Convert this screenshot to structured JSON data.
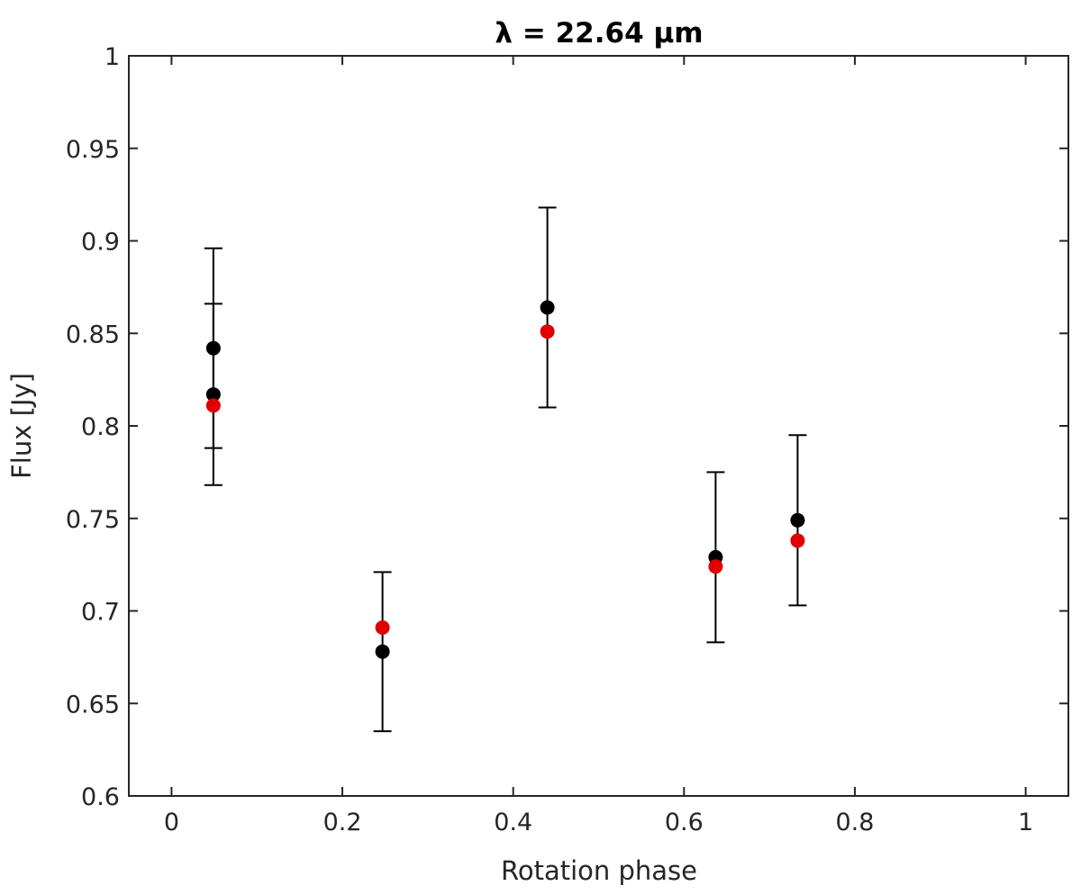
{
  "chart_data": {
    "type": "scatter",
    "title": "λ = 22.64 μm",
    "xlabel": "Rotation phase",
    "ylabel": "Flux [Jy]",
    "xlim": [
      -0.05,
      1.05
    ],
    "ylim": [
      0.6,
      1.0
    ],
    "x_ticks": [
      0,
      0.2,
      0.4,
      0.6,
      0.8,
      1
    ],
    "x_tick_labels": [
      "0",
      "0.2",
      "0.4",
      "0.6",
      "0.8",
      "1"
    ],
    "y_ticks": [
      0.6,
      0.65,
      0.7,
      0.75,
      0.8,
      0.85,
      0.9,
      0.95,
      1.0
    ],
    "y_tick_labels": [
      "0.6",
      "0.65",
      "0.7",
      "0.75",
      "0.8",
      "0.85",
      "0.9",
      "0.95",
      "1"
    ],
    "grid": false,
    "box": true,
    "series": [
      {
        "color": "#000000",
        "marker": "filled-circle",
        "points": [
          {
            "x": 0.049,
            "y": 0.842,
            "err": 0.054
          },
          {
            "x": 0.049,
            "y": 0.817,
            "err": 0.049
          },
          {
            "x": 0.247,
            "y": 0.678,
            "err": 0.043
          },
          {
            "x": 0.44,
            "y": 0.864,
            "err": 0.054
          },
          {
            "x": 0.637,
            "y": 0.729,
            "err": 0.046
          },
          {
            "x": 0.733,
            "y": 0.749,
            "err": 0.046
          }
        ]
      },
      {
        "color": "#e00000",
        "marker": "filled-circle",
        "points": [
          {
            "x": 0.049,
            "y": 0.811
          },
          {
            "x": 0.247,
            "y": 0.691
          },
          {
            "x": 0.44,
            "y": 0.851
          },
          {
            "x": 0.637,
            "y": 0.724
          },
          {
            "x": 0.733,
            "y": 0.738
          }
        ]
      }
    ]
  }
}
